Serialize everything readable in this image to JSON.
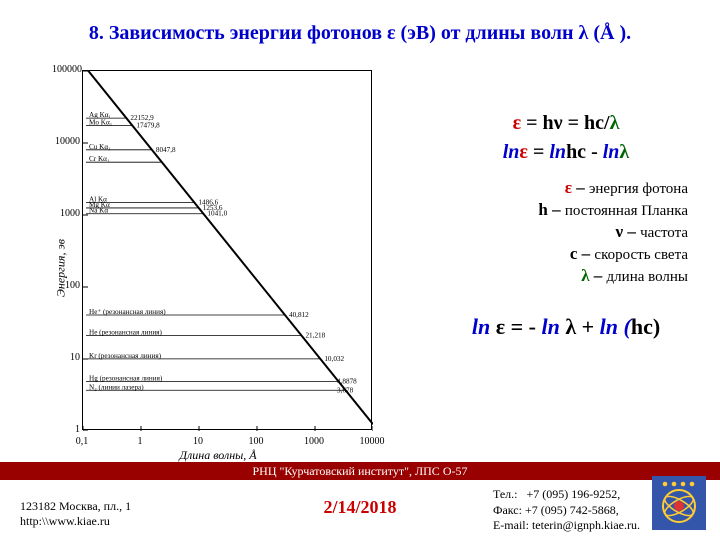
{
  "title": "8. Зависимость энергии фотонов ε (эВ) от длины волн λ (Å ).",
  "chart": {
    "type": "line",
    "ylabel": "Энергия, эв",
    "xlabel": "Длина волны, Å",
    "xscale": "log",
    "yscale": "log",
    "xlim": [
      0.1,
      10000
    ],
    "ylim": [
      1,
      100000
    ],
    "xticks": [
      0.1,
      1,
      10,
      100,
      1000,
      10000
    ],
    "xtick_labels": [
      "0,1",
      "1",
      "10",
      "100",
      "1000",
      "10000"
    ],
    "yticks": [
      1,
      10,
      100,
      1000,
      10000,
      100000
    ],
    "ytick_labels": [
      "1",
      "10",
      "100",
      "1000",
      "10000",
      "100000"
    ],
    "line_color": "#000000",
    "line_width": 2,
    "background_color": "#ffffff",
    "annotations": [
      {
        "label": "Ag Kα₁",
        "value": "22152,9",
        "y": 22152.9
      },
      {
        "label": "Mo Kα₁",
        "value": "17479,8",
        "y": 17479.8
      },
      {
        "label": "Cu Kα₁",
        "value": "8047,8",
        "y": 8047.8
      },
      {
        "label": "Cr Kα₁",
        "value": "",
        "y": 5414
      },
      {
        "label": "Al Kα",
        "value": "1486,6",
        "y": 1486.6
      },
      {
        "label": "Mg Kα",
        "value": "1253,6",
        "y": 1253.6
      },
      {
        "label": "Na Kα",
        "value": "1041,0",
        "y": 1041.0
      },
      {
        "label": "He⁺ (резонансная линия)",
        "value": "40,812",
        "y": 40.812
      },
      {
        "label": "He (резонансная линия)",
        "value": "21,218",
        "y": 21.218
      },
      {
        "label": "Kr (резонансная линия)",
        "value": "10,032",
        "y": 10.032
      },
      {
        "label": "Hg (резонансная линия)",
        "value": "4,8878",
        "y": 4.8878
      },
      {
        "label": "N₂ (линии лазера)",
        "value": "3,678",
        "y": 3.678
      }
    ]
  },
  "formulas": {
    "eq1": {
      "eps": "ε",
      "eq": " = hν = hc/",
      "lambda": "λ"
    },
    "eq2": {
      "p1": "ln",
      "p2": "ε",
      "p3": " = ",
      "p4": "ln",
      "p5": "hc - ",
      "p6": "ln",
      "p7": "λ"
    },
    "defs": [
      {
        "sym": "ε",
        "sym_color": "red",
        "dash": " – ",
        "desc": "энергия фотона"
      },
      {
        "sym": "h",
        "sym_color": "black",
        "dash": " – ",
        "desc": "постоянная Планка"
      },
      {
        "sym": "ν",
        "sym_color": "black",
        "dash": " – ",
        "desc": "частота"
      },
      {
        "sym": "c",
        "sym_color": "black",
        "dash": " – ",
        "desc": "скорость света"
      },
      {
        "sym": "λ",
        "sym_color": "green",
        "dash": " – ",
        "desc": "длина волны"
      }
    ],
    "eq3": {
      "p1": "ln",
      "p2": " ε = - ",
      "p3": "ln",
      "p4": " λ + ",
      "p5": "ln (",
      "p6": "hc)"
    }
  },
  "footer": {
    "bar": "РНЦ \"Курчатовский институт\", ЛПС О-57",
    "addr1": "123182 Москва, пл., 1",
    "addr2": "http:\\\\www.kiae.ru",
    "date": "2/14/2018",
    "tel_label": "Тел.:",
    "tel": "+7 (095) 196-9252,",
    "fax_label": "Факс:",
    "fax": "+7 (095) 742-5868,",
    "email_label": "E-mail:",
    "email": "teterin@ignph.kiae.ru."
  },
  "colors": {
    "title": "#0000cc",
    "footer_bar_bg": "#990000",
    "date": "#cc0000",
    "logo_bg": "#3355aa",
    "logo_ring": "#ffcc33",
    "logo_center": "#dd3333"
  }
}
